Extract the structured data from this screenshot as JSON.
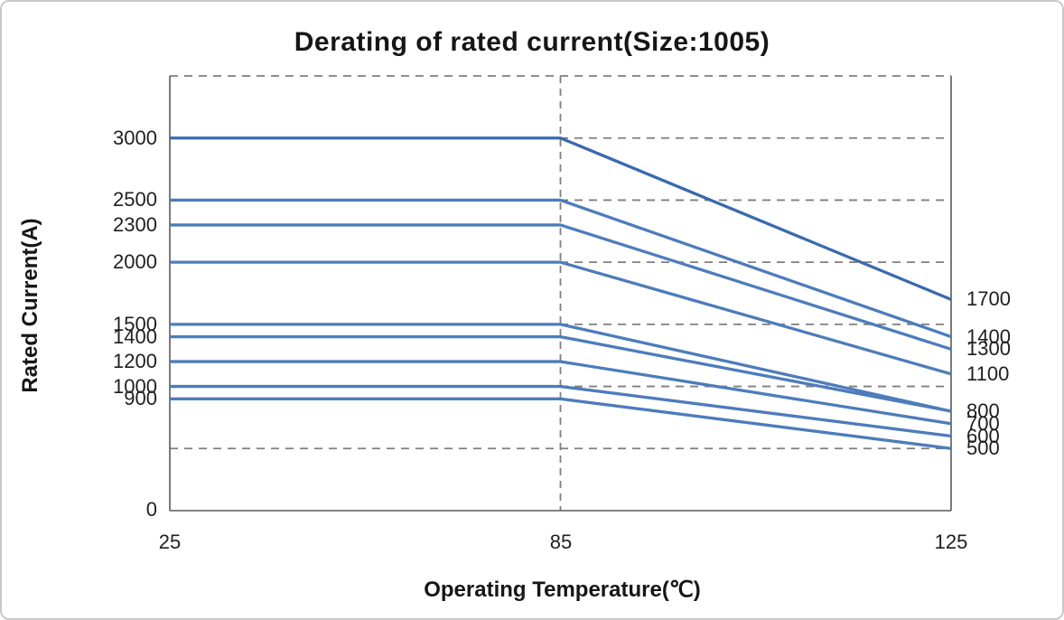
{
  "chart_data": {
    "type": "line",
    "title": "Derating of rated current(Size:1005)",
    "xlabel": "Operating Temperature(℃)",
    "ylabel": "Rated Current(A)",
    "x_tick_labels": [
      "25",
      "85",
      "125"
    ],
    "x_values": [
      25,
      85,
      125
    ],
    "y_origin_label": "0",
    "ylim": [
      0,
      3500
    ],
    "grid": "dashed horizontal every 500 A; dashed vertical at 85 ℃",
    "gridline_values": [
      500,
      1000,
      1500,
      2000,
      2500,
      3000,
      3500
    ],
    "vertical_gridline_x_index": 1,
    "legend": "none; curves labeled by start value (left) and derated end value (right)",
    "series": [
      {
        "name": "3000A",
        "values": [
          3000,
          3000,
          1700
        ]
      },
      {
        "name": "2500A",
        "values": [
          2500,
          2500,
          1400
        ]
      },
      {
        "name": "2300A",
        "values": [
          2300,
          2300,
          1300
        ]
      },
      {
        "name": "2000A",
        "values": [
          2000,
          2000,
          1100
        ]
      },
      {
        "name": "1500A",
        "values": [
          1500,
          1500,
          800
        ]
      },
      {
        "name": "1400A",
        "values": [
          1400,
          1400,
          800
        ]
      },
      {
        "name": "1200A",
        "values": [
          1200,
          1200,
          700
        ]
      },
      {
        "name": "1000A",
        "values": [
          1000,
          1000,
          600
        ]
      },
      {
        "name": "900A",
        "values": [
          900,
          900,
          500
        ]
      }
    ],
    "left_edge_labels": [
      "3000",
      "2500",
      "2300",
      "2000",
      "1500",
      "1400",
      "1200",
      "1000",
      "900"
    ],
    "right_edge_labels": [
      "1700",
      "1400",
      "1300",
      "1100",
      "800",
      "700",
      "600",
      "500"
    ],
    "colors": {
      "line_default": "#4d7cbb",
      "line_top_series": "#3b69ae",
      "gridline": "#7f7f7f",
      "axis": "#595959",
      "text": "#1f1f1f"
    }
  }
}
